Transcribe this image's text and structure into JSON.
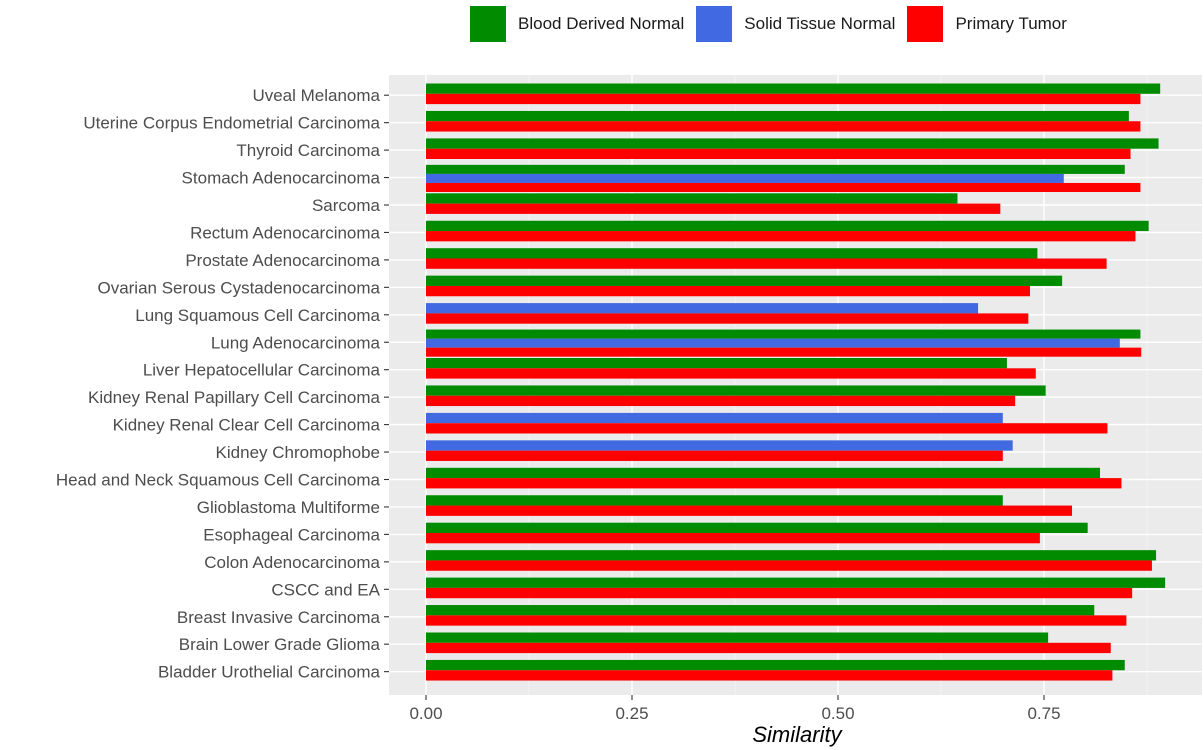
{
  "chart_data": {
    "type": "bar",
    "orientation": "horizontal",
    "xlabel": "Similarity",
    "ylabel": "",
    "xlim": [
      0,
      0.92
    ],
    "xticks": [
      0.0,
      0.25,
      0.5,
      0.75
    ],
    "xtick_labels": [
      "0.00",
      "0.25",
      "0.50",
      "0.75"
    ],
    "grid": true,
    "legend_position": "top",
    "categories": [
      "Uveal Melanoma",
      "Uterine Corpus Endometrial Carcinoma",
      "Thyroid Carcinoma",
      "Stomach Adenocarcinoma",
      "Sarcoma",
      "Rectum Adenocarcinoma",
      "Prostate Adenocarcinoma",
      "Ovarian Serous Cystadenocarcinoma",
      "Lung Squamous Cell Carcinoma",
      "Lung Adenocarcinoma",
      "Liver Hepatocellular Carcinoma",
      "Kidney Renal Papillary Cell Carcinoma",
      "Kidney Renal Clear Cell Carcinoma",
      "Kidney Chromophobe",
      "Head and Neck Squamous Cell Carcinoma",
      "Glioblastoma Multiforme",
      "Esophageal Carcinoma",
      "Colon Adenocarcinoma",
      "CSCC and EA",
      "Breast Invasive Carcinoma",
      "Brain Lower Grade Glioma",
      "Bladder Urothelial Carcinoma"
    ],
    "series": [
      {
        "name": "Blood Derived Normal",
        "color": "#008B00",
        "values": [
          0.891,
          0.853,
          0.889,
          0.848,
          0.645,
          0.877,
          0.742,
          0.772,
          null,
          0.867,
          0.705,
          0.752,
          null,
          null,
          0.818,
          0.7,
          0.803,
          0.886,
          0.897,
          0.811,
          0.755,
          0.848
        ]
      },
      {
        "name": "Solid Tissue Normal",
        "color": "#4169E1",
        "values": [
          null,
          null,
          null,
          0.774,
          null,
          null,
          null,
          null,
          0.67,
          0.842,
          null,
          null,
          0.7,
          0.712,
          null,
          null,
          null,
          null,
          null,
          null,
          null,
          null
        ]
      },
      {
        "name": "Primary Tumor",
        "color": "#FF0000",
        "values": [
          0.867,
          0.867,
          0.855,
          0.867,
          0.697,
          0.861,
          0.826,
          0.733,
          0.731,
          0.868,
          0.74,
          0.715,
          0.827,
          0.7,
          0.844,
          0.784,
          0.745,
          0.881,
          0.857,
          0.85,
          0.831,
          0.833
        ]
      }
    ]
  }
}
